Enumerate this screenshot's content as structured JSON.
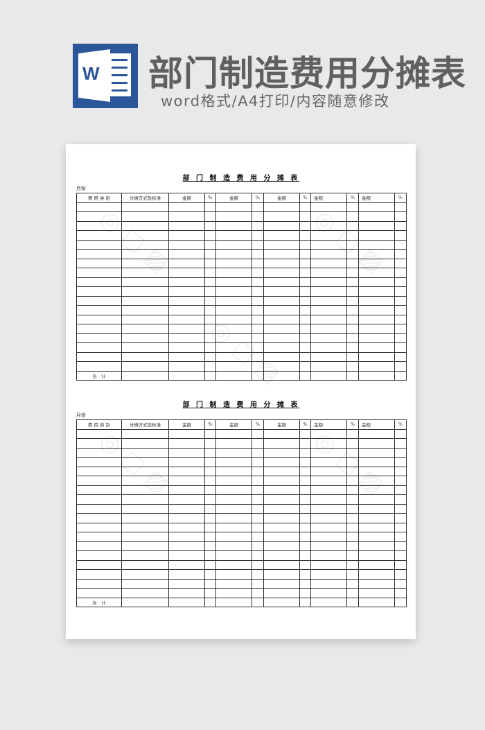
{
  "banner": {
    "app_icon": "word-icon",
    "app_icon_letter": "W",
    "title": "部门制造费用分摊表",
    "subtitle": "word格式/A4打印/内容随意修改",
    "brand_color": "#2b579a"
  },
  "sheets": [
    {
      "title": "部 门 制 造 费 用 分 摊 表",
      "month_label": "月份",
      "headers": [
        "费 用 类 别",
        "分摊方式及标准",
        "金额",
        "%",
        "金额",
        "%",
        "金额",
        "%",
        "金额",
        "%",
        "金额",
        "%"
      ],
      "total_label": "合　计"
    },
    {
      "title": "部 门 制 造 费 用 分 摊 表",
      "month_label": "月份",
      "headers": [
        "费 用 类 别",
        "分摊方式及标准",
        "金额",
        "%",
        "金额",
        "%",
        "金额",
        "%",
        "金额",
        "%",
        "金额",
        "%"
      ],
      "total_label": "合　计"
    }
  ]
}
